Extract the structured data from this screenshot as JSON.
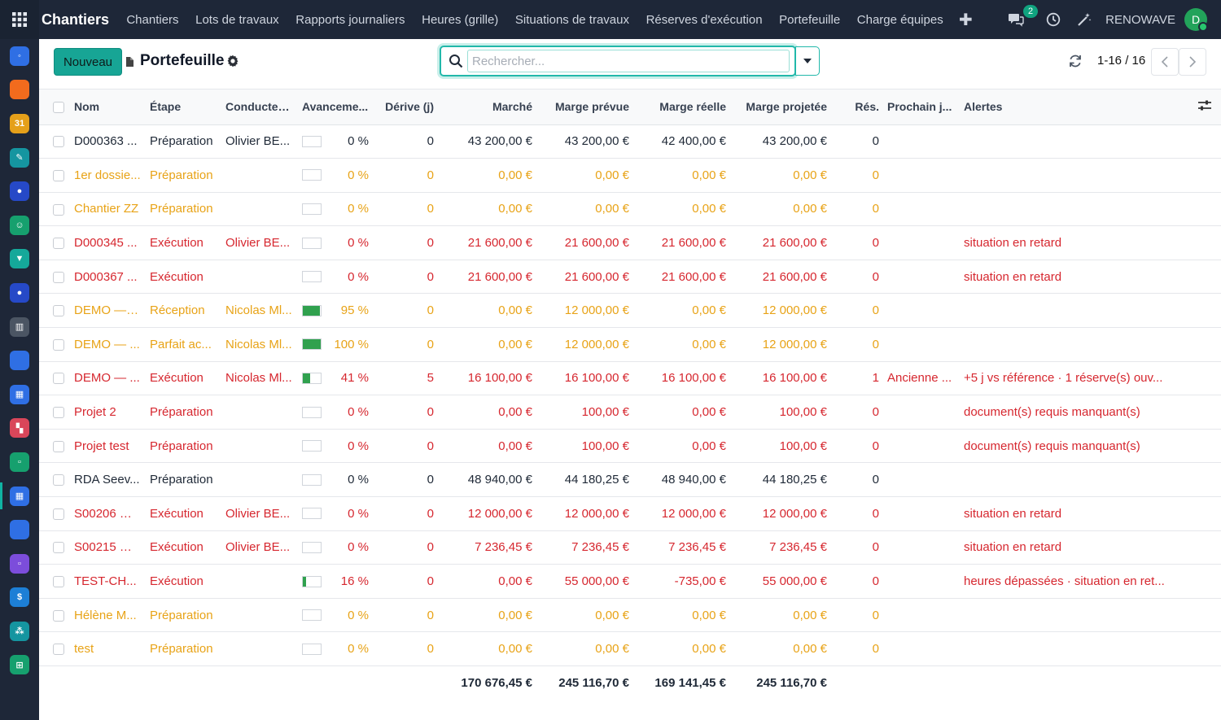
{
  "app": {
    "brand": "Chantiers",
    "menu": [
      "Chantiers",
      "Lots de travaux",
      "Rapports journaliers",
      "Heures (grille)",
      "Situations de travaux",
      "Réserves d'exécution",
      "Portefeuille",
      "Charge équipes"
    ],
    "messages_count": "2",
    "company": "RENOWAVE",
    "avatar_initial": "D"
  },
  "rail_apps": [
    {
      "icon": "discuss-app-icon",
      "color": "#2f6fe4",
      "glyph": "◦"
    },
    {
      "icon": "chat-bubble-app-icon",
      "color": "#f26b1d",
      "glyph": ""
    },
    {
      "icon": "calendar-31-app-icon",
      "color": "#e5a01a",
      "glyph": "31"
    },
    {
      "icon": "sign-app-icon",
      "color": "#1595a0",
      "glyph": "✎"
    },
    {
      "icon": "disc-app-icon",
      "color": "#2649c7",
      "glyph": "●"
    },
    {
      "icon": "contacts-app-icon",
      "color": "#16a06e",
      "glyph": "☺"
    },
    {
      "icon": "crm-app-icon",
      "color": "#15a89a",
      "glyph": "▼"
    },
    {
      "icon": "disc-app-icon-2",
      "color": "#2649c7",
      "glyph": "●"
    },
    {
      "icon": "building-app-icon",
      "color": "#4b5563",
      "glyph": "▥"
    },
    {
      "icon": "blue-square-app-icon",
      "color": "#2f6fe4",
      "glyph": ""
    },
    {
      "icon": "planning-app-icon",
      "color": "#2f6fe4",
      "glyph": "▦"
    },
    {
      "icon": "dashboard-app-icon",
      "color": "#d9465a",
      "glyph": "▚"
    },
    {
      "icon": "green-app-icon",
      "color": "#16a06e",
      "glyph": "▫"
    },
    {
      "icon": "chantiers-app-icon",
      "color": "#2f6fe4",
      "glyph": "▦"
    },
    {
      "icon": "blue-app-icon",
      "color": "#2f6fe4",
      "glyph": ""
    },
    {
      "icon": "purple-app-icon",
      "color": "#7c4ddb",
      "glyph": "▫"
    },
    {
      "icon": "sheet-app-icon",
      "color": "#1d7fd6",
      "glyph": "$"
    },
    {
      "icon": "people-app-icon",
      "color": "#1595a0",
      "glyph": "⁂"
    },
    {
      "icon": "spreadsheet-app-icon",
      "color": "#16a06e",
      "glyph": "⊞"
    }
  ],
  "control": {
    "new_label": "Nouveau",
    "title": "Portefeuille",
    "search_placeholder": "Rechercher...",
    "pager": "1-16 / 16"
  },
  "columns": [
    "Nom",
    "Étape",
    "Conducteu...",
    "Avanceme...",
    "Dérive (j)",
    "Marché",
    "Marge prévue",
    "Marge réelle",
    "Marge projetée",
    "Rés.",
    "Prochain j...",
    "Alertes"
  ],
  "rows": [
    {
      "status": "black",
      "nom": "D000363 ...",
      "etape": "Préparation",
      "conducteur": "Olivier BE...",
      "avancement": 0,
      "avancement_label": "0 %",
      "derive": "0",
      "marche": "43 200,00 €",
      "marge_prevue": "43 200,00 €",
      "marge_reelle": "42 400,00 €",
      "marge_projetee": "43 200,00 €",
      "res": "0",
      "prochain": "",
      "alertes": ""
    },
    {
      "status": "orange",
      "nom": "1er dossie...",
      "etape": "Préparation",
      "conducteur": "",
      "avancement": 0,
      "avancement_label": "0 %",
      "derive": "0",
      "marche": "0,00 €",
      "marge_prevue": "0,00 €",
      "marge_reelle": "0,00 €",
      "marge_projetee": "0,00 €",
      "res": "0",
      "prochain": "",
      "alertes": ""
    },
    {
      "status": "orange",
      "nom": "Chantier ZZ",
      "etape": "Préparation",
      "conducteur": "",
      "avancement": 0,
      "avancement_label": "0 %",
      "derive": "0",
      "marche": "0,00 €",
      "marge_prevue": "0,00 €",
      "marge_reelle": "0,00 €",
      "marge_projetee": "0,00 €",
      "res": "0",
      "prochain": "",
      "alertes": ""
    },
    {
      "status": "red",
      "nom": "D000345 ...",
      "etape": "Exécution",
      "conducteur": "Olivier BE...",
      "avancement": 0,
      "avancement_label": "0 %",
      "derive": "0",
      "marche": "21 600,00 €",
      "marge_prevue": "21 600,00 €",
      "marge_reelle": "21 600,00 €",
      "marge_projetee": "21 600,00 €",
      "res": "0",
      "prochain": "",
      "alertes": "situation en retard"
    },
    {
      "status": "red",
      "nom": "D000367 ...",
      "etape": "Exécution",
      "conducteur": "",
      "avancement": 0,
      "avancement_label": "0 %",
      "derive": "0",
      "marche": "21 600,00 €",
      "marge_prevue": "21 600,00 €",
      "marge_reelle": "21 600,00 €",
      "marge_projetee": "21 600,00 €",
      "res": "0",
      "prochain": "",
      "alertes": "situation en retard"
    },
    {
      "status": "orange",
      "nom": "DEMO — l...",
      "etape": "Réception",
      "conducteur": "Nicolas Ml...",
      "avancement": 95,
      "avancement_label": "95 %",
      "derive": "0",
      "marche": "0,00 €",
      "marge_prevue": "12 000,00 €",
      "marge_reelle": "0,00 €",
      "marge_projetee": "12 000,00 €",
      "res": "0",
      "prochain": "",
      "alertes": ""
    },
    {
      "status": "orange",
      "nom": "DEMO — ...",
      "etape": "Parfait ac...",
      "conducteur": "Nicolas Ml...",
      "avancement": 100,
      "avancement_label": "100 %",
      "derive": "0",
      "marche": "0,00 €",
      "marge_prevue": "12 000,00 €",
      "marge_reelle": "0,00 €",
      "marge_projetee": "12 000,00 €",
      "res": "0",
      "prochain": "",
      "alertes": ""
    },
    {
      "status": "red",
      "nom": "DEMO — ...",
      "etape": "Exécution",
      "conducteur": "Nicolas Ml...",
      "avancement": 41,
      "avancement_label": "41 %",
      "derive": "5",
      "marche": "16 100,00 €",
      "marge_prevue": "16 100,00 €",
      "marge_reelle": "16 100,00 €",
      "marge_projetee": "16 100,00 €",
      "res": "1",
      "prochain": "Ancienne ...",
      "alertes": "+5 j vs référence · 1 réserve(s) ouv..."
    },
    {
      "status": "red",
      "nom": "Projet 2",
      "etape": "Préparation",
      "conducteur": "",
      "avancement": 0,
      "avancement_label": "0 %",
      "derive": "0",
      "marche": "0,00 €",
      "marge_prevue": "100,00 €",
      "marge_reelle": "0,00 €",
      "marge_projetee": "100,00 €",
      "res": "0",
      "prochain": "",
      "alertes": "document(s) requis manquant(s)"
    },
    {
      "status": "red",
      "nom": "Projet test",
      "etape": "Préparation",
      "conducteur": "",
      "avancement": 0,
      "avancement_label": "0 %",
      "derive": "0",
      "marche": "0,00 €",
      "marge_prevue": "100,00 €",
      "marge_reelle": "0,00 €",
      "marge_projetee": "100,00 €",
      "res": "0",
      "prochain": "",
      "alertes": "document(s) requis manquant(s)"
    },
    {
      "status": "black",
      "nom": "RDA Seev...",
      "etape": "Préparation",
      "conducteur": "",
      "avancement": 0,
      "avancement_label": "0 %",
      "derive": "0",
      "marche": "48 940,00 €",
      "marge_prevue": "44 180,25 €",
      "marge_reelle": "48 940,00 €",
      "marge_projetee": "44 180,25 €",
      "res": "0",
      "prochain": "",
      "alertes": ""
    },
    {
      "status": "red",
      "nom": "S00206 —...",
      "etape": "Exécution",
      "conducteur": "Olivier BE...",
      "avancement": 0,
      "avancement_label": "0 %",
      "derive": "0",
      "marche": "12 000,00 €",
      "marge_prevue": "12 000,00 €",
      "marge_reelle": "12 000,00 €",
      "marge_projetee": "12 000,00 €",
      "res": "0",
      "prochain": "",
      "alertes": "situation en retard"
    },
    {
      "status": "red",
      "nom": "S00215 —...",
      "etape": "Exécution",
      "conducteur": "Olivier BE...",
      "avancement": 0,
      "avancement_label": "0 %",
      "derive": "0",
      "marche": "7 236,45 €",
      "marge_prevue": "7 236,45 €",
      "marge_reelle": "7 236,45 €",
      "marge_projetee": "7 236,45 €",
      "res": "0",
      "prochain": "",
      "alertes": "situation en retard"
    },
    {
      "status": "red",
      "nom": "TEST-CH...",
      "etape": "Exécution",
      "conducteur": "",
      "avancement": 16,
      "avancement_label": "16 %",
      "derive": "0",
      "marche": "0,00 €",
      "marge_prevue": "55 000,00 €",
      "marge_reelle": "-735,00 €",
      "marge_projetee": "55 000,00 €",
      "res": "0",
      "prochain": "",
      "alertes": "heures dépassées · situation en ret..."
    },
    {
      "status": "orange",
      "nom": "Hélène M...",
      "etape": "Préparation",
      "conducteur": "",
      "avancement": 0,
      "avancement_label": "0 %",
      "derive": "0",
      "marche": "0,00 €",
      "marge_prevue": "0,00 €",
      "marge_reelle": "0,00 €",
      "marge_projetee": "0,00 €",
      "res": "0",
      "prochain": "",
      "alertes": ""
    },
    {
      "status": "orange",
      "nom": "test",
      "etape": "Préparation",
      "conducteur": "",
      "avancement": 0,
      "avancement_label": "0 %",
      "derive": "0",
      "marche": "0,00 €",
      "marge_prevue": "0,00 €",
      "marge_reelle": "0,00 €",
      "marge_projetee": "0,00 €",
      "res": "0",
      "prochain": "",
      "alertes": ""
    }
  ],
  "totals": {
    "marche": "170 676,45 €",
    "marge_prevue": "245 116,70 €",
    "marge_reelle": "169 141,45 €",
    "marge_projetee": "245 116,70 €"
  },
  "colors": {
    "accent": "#17a595",
    "topbar": "#1e2738",
    "warning_row": "#e8a317",
    "danger_row": "#d6272f",
    "progress_fill": "#30a14e"
  }
}
